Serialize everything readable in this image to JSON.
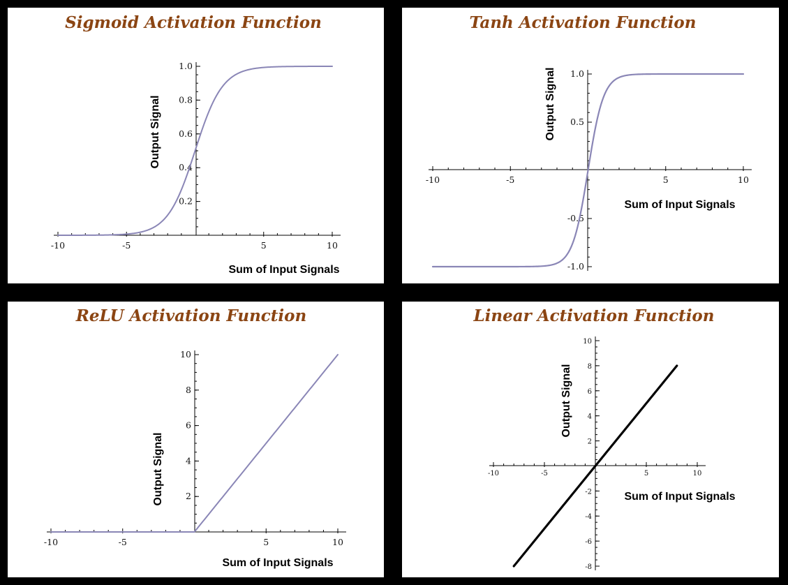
{
  "colors": {
    "background": "#000000",
    "panel": "#ffffff",
    "title": "#8B4513",
    "curve": "#8a86b6",
    "linear": "#000000"
  },
  "chart_data": [
    {
      "type": "line",
      "title": "Sigmoid Activation Function",
      "xlabel": "Sum of Input Signals",
      "ylabel": "Output Signal",
      "xlim": [
        -10,
        10
      ],
      "ylim": [
        0,
        1
      ],
      "xticks": [
        "-10",
        "-5",
        "5",
        "10"
      ],
      "yticks": [
        "0.2",
        "0.4",
        "0.6",
        "0.8",
        "1.0"
      ],
      "function": "sigmoid",
      "series": [
        {
          "x": [
            -10,
            -8,
            -6,
            -5,
            -4,
            -3,
            -2,
            -1,
            0,
            1,
            2,
            3,
            4,
            5,
            6,
            8,
            10
          ],
          "values": [
            5e-05,
            0.0003,
            0.0025,
            0.0067,
            0.018,
            0.047,
            0.119,
            0.269,
            0.5,
            0.731,
            0.881,
            0.953,
            0.982,
            0.993,
            0.9975,
            0.9997,
            0.99995
          ]
        }
      ]
    },
    {
      "type": "line",
      "title": "Tanh Activation Function",
      "xlabel": "Sum of Input Signals",
      "ylabel": "Output Signal",
      "xlim": [
        -10,
        10
      ],
      "ylim": [
        -1,
        1
      ],
      "xticks": [
        "-10",
        "-5",
        "5",
        "10"
      ],
      "yticks": [
        "-1.0",
        "-0.5",
        "0.5",
        "1.0"
      ],
      "function": "tanh",
      "series": [
        {
          "x": [
            -10,
            -6,
            -4,
            -3,
            -2,
            -1.5,
            -1,
            -0.5,
            0,
            0.5,
            1,
            1.5,
            2,
            3,
            4,
            6,
            10
          ],
          "values": [
            -1.0,
            -1.0,
            -0.999,
            -0.995,
            -0.964,
            -0.905,
            -0.762,
            -0.462,
            0,
            0.462,
            0.762,
            0.905,
            0.964,
            0.995,
            0.999,
            1.0,
            1.0
          ]
        }
      ]
    },
    {
      "type": "line",
      "title": "ReLU Activation Function",
      "xlabel": "Sum of Input Signals",
      "ylabel": "Output Signal",
      "xlim": [
        -10,
        10
      ],
      "ylim": [
        0,
        10
      ],
      "xticks": [
        "-10",
        "-5",
        "5",
        "10"
      ],
      "yticks": [
        "2",
        "4",
        "6",
        "8",
        "10"
      ],
      "function": "relu",
      "series": [
        {
          "x": [
            -10,
            0,
            10
          ],
          "values": [
            0,
            0,
            10
          ]
        }
      ]
    },
    {
      "type": "line",
      "title": "Linear Activation Function",
      "xlabel": "Sum of Input Signals",
      "ylabel": "Output Signal",
      "xlim": [
        -10,
        10
      ],
      "ylim": [
        -8,
        10
      ],
      "xticks": [
        "-10",
        "-5",
        "5",
        "10"
      ],
      "yticks": [
        "-8",
        "-6",
        "-4",
        "-2",
        "2",
        "4",
        "6",
        "8",
        "10"
      ],
      "function": "linear",
      "series": [
        {
          "x": [
            -8,
            8
          ],
          "values": [
            -8,
            8
          ]
        }
      ]
    }
  ]
}
